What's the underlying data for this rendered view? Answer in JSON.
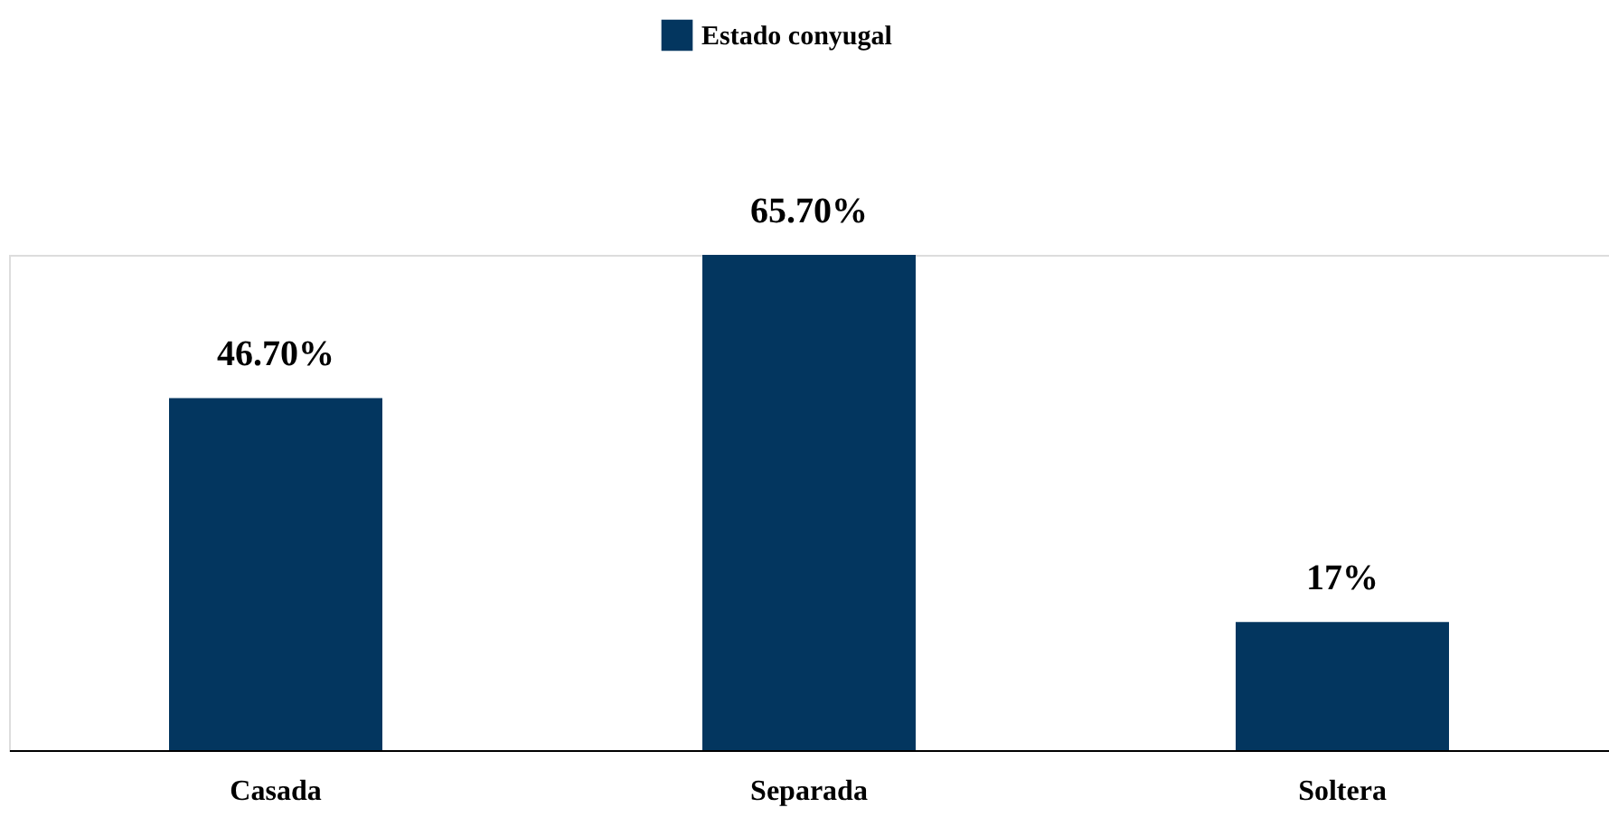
{
  "chart_data": {
    "type": "bar",
    "categories": [
      "Casada",
      "Separada",
      "Soltera"
    ],
    "series": [
      {
        "name": "Estado conyugal",
        "color": "#03365f",
        "values": [
          46.7,
          65.7,
          17
        ],
        "value_labels": [
          "46.70%",
          "65.70%",
          "17%"
        ]
      }
    ],
    "legend": "top",
    "grid": false,
    "tick_labels": "x"
  }
}
